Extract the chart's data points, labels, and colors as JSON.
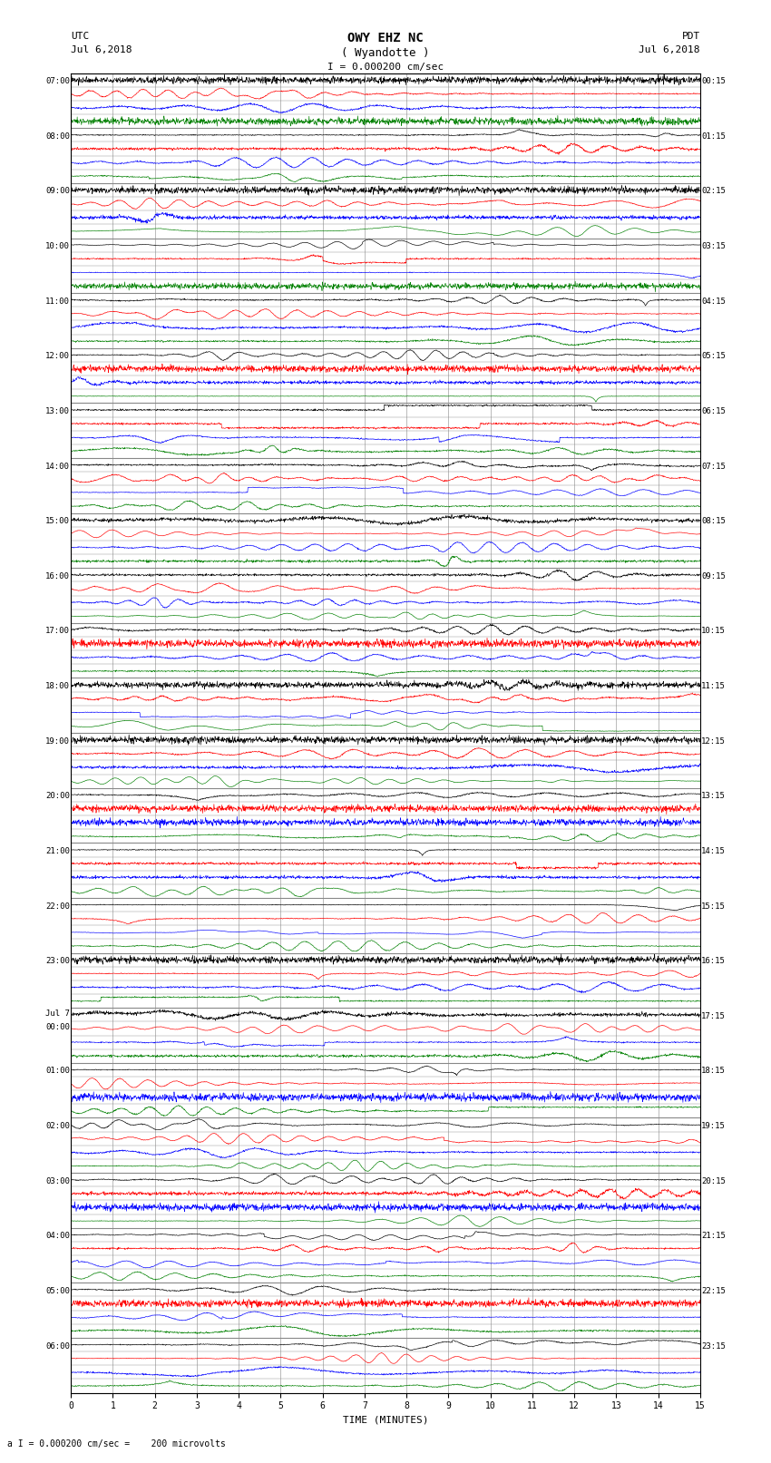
{
  "title_line1": "OWY EHZ NC",
  "title_line2": "( Wyandotte )",
  "scale_label": "I = 0.000200 cm/sec",
  "utc_label": "UTC",
  "pdt_label": "PDT",
  "date_left": "Jul 6,2018",
  "date_right": "Jul 6,2018",
  "xlabel": "TIME (MINUTES)",
  "footer_label": "a I = 0.000200 cm/sec =    200 microvolts",
  "bg_color": "#ffffff",
  "grid_color": "#888888",
  "trace_colors": [
    "black",
    "red",
    "blue",
    "green"
  ],
  "num_rows": 24,
  "subtraces": 4,
  "minutes_per_row": 60,
  "x_min": 0,
  "x_max": 15,
  "fig_width": 8.5,
  "fig_height": 16.13,
  "left_labels_utc": [
    "07:00",
    "08:00",
    "09:00",
    "10:00",
    "11:00",
    "12:00",
    "13:00",
    "14:00",
    "15:00",
    "16:00",
    "17:00",
    "18:00",
    "19:00",
    "20:00",
    "21:00",
    "22:00",
    "23:00",
    "Jul 7\n00:00",
    "01:00",
    "02:00",
    "03:00",
    "04:00",
    "05:00",
    "06:00"
  ],
  "right_labels_pdt": [
    "00:15",
    "01:15",
    "02:15",
    "03:15",
    "04:15",
    "05:15",
    "06:15",
    "07:15",
    "08:15",
    "09:15",
    "10:15",
    "11:15",
    "12:15",
    "13:15",
    "14:15",
    "15:15",
    "16:15",
    "17:15",
    "18:15",
    "19:15",
    "20:15",
    "21:15",
    "22:15",
    "23:15"
  ]
}
